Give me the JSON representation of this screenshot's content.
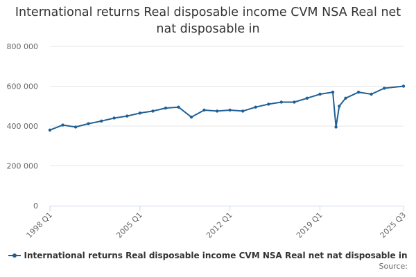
{
  "chart_data": {
    "type": "line",
    "title": "International returns Real disposable income CVM NSA Real net nat disposable in",
    "xlabel": "",
    "ylabel": "",
    "ylim": [
      0,
      800000
    ],
    "y_ticks": [
      "0",
      "200 000",
      "400 000",
      "600 000",
      "800 000"
    ],
    "x_tick_labels": [
      "1998 Q1",
      "2005 Q1",
      "2012 Q1",
      "2019 Q1",
      "2025 Q3"
    ],
    "grid": true,
    "legend_position": "bottom",
    "series": [
      {
        "name": "International returns Real disposable income CVM NSA Real net nat disposable in",
        "color": "#206095",
        "x": [
          "1998 Q1",
          "1999 Q1",
          "2000 Q1",
          "2001 Q1",
          "2002 Q1",
          "2003 Q1",
          "2004 Q1",
          "2005 Q1",
          "2006 Q1",
          "2007 Q1",
          "2008 Q1",
          "2009 Q1",
          "2010 Q1",
          "2011 Q1",
          "2012 Q1",
          "2013 Q1",
          "2014 Q1",
          "2015 Q1",
          "2016 Q1",
          "2017 Q1",
          "2018 Q1",
          "2019 Q1",
          "2020 Q1",
          "2020 Q2",
          "2020 Q3",
          "2021 Q1",
          "2022 Q1",
          "2023 Q1",
          "2024 Q1",
          "2025 Q3"
        ],
        "values": [
          380000,
          405000,
          395000,
          412000,
          425000,
          440000,
          450000,
          465000,
          475000,
          490000,
          495000,
          445000,
          480000,
          475000,
          480000,
          475000,
          495000,
          510000,
          520000,
          520000,
          540000,
          560000,
          570000,
          395000,
          500000,
          540000,
          570000,
          560000,
          590000,
          600000
        ]
      }
    ]
  },
  "legend": {
    "label": "International returns Real disposable income CVM NSA Real net nat disposable in"
  },
  "source": {
    "label": "Source:"
  }
}
